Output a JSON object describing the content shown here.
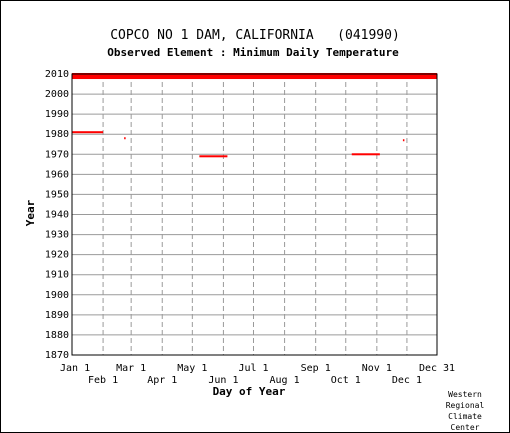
{
  "chart_data": {
    "type": "scatter",
    "title": "COPCO NO 1 DAM, CALIFORNIA   (041990)",
    "subtitle": "Observed Element : Minimum Daily Temperature",
    "xlabel": "Day of Year",
    "ylabel": "Year",
    "x_ticks_top_row": [
      "Jan 1",
      "Mar 1",
      "May 1",
      "Jul 1",
      "Sep 1",
      "Nov 1",
      "Dec 31"
    ],
    "x_ticks_bottom_row": [
      "Feb 1",
      "Apr 1",
      "Jun 1",
      "Aug 1",
      "Oct 1",
      "Dec 1"
    ],
    "x_tick_days": [
      1,
      32,
      60,
      91,
      121,
      152,
      182,
      213,
      244,
      274,
      305,
      335,
      365
    ],
    "xlim": [
      1,
      365
    ],
    "y_ticks": [
      1870,
      1880,
      1890,
      1900,
      1910,
      1920,
      1930,
      1940,
      1950,
      1960,
      1970,
      1980,
      1990,
      2000,
      2010
    ],
    "ylim": [
      1870,
      2010
    ],
    "grid": true,
    "data_color": "#ff0000",
    "segments": [
      {
        "year": 1981,
        "start_day": 1,
        "end_day": 32
      },
      {
        "year": 1978,
        "start_day": 53,
        "end_day": 54
      },
      {
        "year": 1969,
        "start_day": 128,
        "end_day": 156
      },
      {
        "year": 1970,
        "start_day": 280,
        "end_day": 308
      },
      {
        "year": 1977,
        "start_day": 331,
        "end_day": 332
      },
      {
        "year": 2008,
        "start_day": 1,
        "end_day": 365
      },
      {
        "year": 2009,
        "start_day": 1,
        "end_day": 365
      },
      {
        "year": 2010,
        "start_day": 1,
        "end_day": 365
      }
    ]
  },
  "credit": [
    "Western",
    "Regional",
    "Climate",
    "Center"
  ]
}
